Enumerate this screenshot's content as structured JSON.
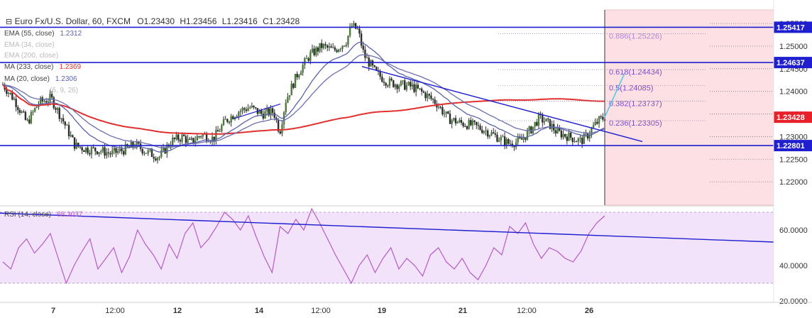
{
  "header": {
    "symbol": "Euro Fx/U.S. Dollar, 60, FXCM",
    "open": "O1.23430",
    "high": "H1.23456",
    "low": "L1.23416",
    "close": "C1.23428"
  },
  "indicators": [
    {
      "label": "EMA (55, close)",
      "value": "1.2312",
      "color": "#5a62a8"
    },
    {
      "label": "EMA (34, close)",
      "value": "",
      "color": "#c0c0c0"
    },
    {
      "label": "EMA (200, close)",
      "value": "",
      "color": "#c0c0c0"
    },
    {
      "label": "MA (233, close)",
      "value": "1.2369",
      "color": "#e0302e"
    },
    {
      "label": "MA (20, close)",
      "value": "1.2306",
      "color": "#5a62a8"
    },
    {
      "label": "(6, 9, 26)",
      "value": "",
      "color": "#c0c0c0"
    }
  ],
  "colors": {
    "up": "#6ba583",
    "down": "#d75442",
    "candle_body": "#4a7d3a",
    "hline": "#1f1fd0",
    "ma233": "#e0302e",
    "ema": "#5a62a8",
    "fib_zone": "#fde0e4",
    "rsi": "#b45cc4",
    "rsi_band": "#f2e3fb",
    "price_tag": "#e8202a",
    "projection": "#54c8e8"
  },
  "chart_data": [
    {
      "type": "candlestick",
      "title": "Euro Fx/U.S. Dollar, 60, FXCM",
      "ylim": [
        1.215,
        1.258
      ],
      "y_ticks": [
        "1.25500",
        "1.25000",
        "1.24500",
        "1.24000",
        "1.23500",
        "1.23000",
        "1.22500",
        "1.22000"
      ],
      "x_ticks": [
        "7",
        "12:00",
        "12",
        "14",
        "12:00",
        "19",
        "21",
        "12:00",
        "26"
      ],
      "horizontal_levels": [
        {
          "label": "1.25417",
          "value": 1.25417
        },
        {
          "label": "1.24637",
          "value": 1.24637
        },
        {
          "label": "1.22801",
          "value": 1.22801
        }
      ],
      "last_price": {
        "label": "1.23428",
        "value": 1.23428
      },
      "fibonacci": [
        {
          "label": "0.886(1.25226)",
          "value": 1.25226
        },
        {
          "label": "0.618(1.24434)",
          "value": 1.24434
        },
        {
          "label": "0.5(1.24085)",
          "value": 1.24085
        },
        {
          "label": "0.382(1.23737)",
          "value": 1.23737
        },
        {
          "label": "0.236(1.23305)",
          "value": 1.23305
        }
      ],
      "price_path": [
        [
          0,
          1.2415
        ],
        [
          0.02,
          1.238
        ],
        [
          0.04,
          1.233
        ],
        [
          0.06,
          1.2375
        ],
        [
          0.08,
          1.2385
        ],
        [
          0.1,
          1.2335
        ],
        [
          0.12,
          1.228
        ],
        [
          0.14,
          1.2272
        ],
        [
          0.16,
          1.227
        ],
        [
          0.18,
          1.2262
        ],
        [
          0.2,
          1.227
        ],
        [
          0.22,
          1.2282
        ],
        [
          0.24,
          1.2265
        ],
        [
          0.26,
          1.2255
        ],
        [
          0.28,
          1.229
        ],
        [
          0.3,
          1.23
        ],
        [
          0.31,
          1.2285
        ],
        [
          0.33,
          1.2305
        ],
        [
          0.35,
          1.2295
        ],
        [
          0.37,
          1.2335
        ],
        [
          0.39,
          1.2355
        ],
        [
          0.41,
          1.2365
        ],
        [
          0.43,
          1.235
        ],
        [
          0.45,
          1.2355
        ],
        [
          0.46,
          1.231
        ],
        [
          0.47,
          1.238
        ],
        [
          0.49,
          1.244
        ],
        [
          0.51,
          1.248
        ],
        [
          0.53,
          1.25
        ],
        [
          0.55,
          1.249
        ],
        [
          0.57,
          1.251
        ],
        [
          0.58,
          1.2545
        ],
        [
          0.59,
          1.2535
        ],
        [
          0.6,
          1.248
        ],
        [
          0.62,
          1.244
        ],
        [
          0.64,
          1.242
        ],
        [
          0.66,
          1.2415
        ],
        [
          0.68,
          1.241
        ],
        [
          0.7,
          1.2395
        ],
        [
          0.72,
          1.2375
        ],
        [
          0.74,
          1.234
        ],
        [
          0.76,
          1.233
        ],
        [
          0.78,
          1.2325
        ],
        [
          0.8,
          1.2315
        ],
        [
          0.82,
          1.23
        ],
        [
          0.84,
          1.2285
        ],
        [
          0.86,
          1.229
        ],
        [
          0.87,
          1.2305
        ],
        [
          0.88,
          1.232
        ],
        [
          0.89,
          1.234
        ],
        [
          0.9,
          1.2335
        ],
        [
          0.91,
          1.2325
        ],
        [
          0.92,
          1.231
        ],
        [
          0.93,
          1.2305
        ],
        [
          0.94,
          1.23
        ],
        [
          0.95,
          1.2295
        ],
        [
          0.96,
          1.229
        ],
        [
          0.97,
          1.23
        ],
        [
          0.98,
          1.232
        ],
        [
          0.99,
          1.2335
        ],
        [
          1.0,
          1.2343
        ]
      ]
    },
    {
      "type": "line",
      "title": "RSI (14, close)",
      "value_label": "68.3037",
      "ylim": [
        20,
        72
      ],
      "y_ticks": [
        "60.0000",
        "40.0000",
        "20.0000"
      ],
      "band": [
        30,
        70
      ],
      "values": [
        42,
        38,
        50,
        55,
        47,
        52,
        58,
        44,
        30,
        40,
        48,
        55,
        38,
        44,
        50,
        36,
        45,
        60,
        52,
        46,
        38,
        52,
        44,
        58,
        64,
        50,
        55,
        62,
        70,
        66,
        60,
        68,
        56,
        45,
        36,
        62,
        58,
        66,
        60,
        72,
        64,
        55,
        46,
        38,
        30,
        40,
        46,
        36,
        44,
        50,
        38,
        44,
        40,
        34,
        46,
        50,
        42,
        38,
        44,
        36,
        32,
        40,
        50,
        46,
        62,
        58,
        64,
        52,
        44,
        50,
        48,
        44,
        42,
        48,
        58,
        64,
        68
      ]
    }
  ]
}
